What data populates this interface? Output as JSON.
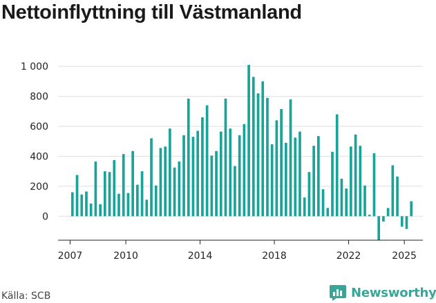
{
  "title": "Nettoinflyttning till Västmanland",
  "source": "Källa: SCB",
  "brand": {
    "name": "Newsworthy",
    "icon": "newsworthy-logo-icon",
    "color": "#3aa597"
  },
  "colors": {
    "bar": "#1aa398",
    "grid": "#dddddd",
    "axis": "#222222"
  },
  "chart_data": {
    "type": "bar",
    "title": "Nettoinflyttning till Västmanland",
    "xlabel": "",
    "ylabel": "",
    "x_range": [
      2006.35,
      2026.0
    ],
    "ylim": [
      -160,
      1010
    ],
    "y_ticks": [
      0,
      200,
      400,
      600,
      800,
      1000
    ],
    "y_tick_labels": [
      "0",
      "200",
      "400",
      "600",
      "800",
      "1 000"
    ],
    "x_ticks": [
      2007,
      2010,
      2014,
      2018,
      2022,
      2025
    ],
    "x_tick_labels": [
      "2007",
      "2010",
      "2014",
      "2018",
      "2022",
      "2025"
    ],
    "grid": true,
    "series": [
      {
        "x": [
          2007.125,
          2007.375,
          2007.625,
          2007.875,
          2008.125,
          2008.375,
          2008.625,
          2008.875,
          2009.125,
          2009.375,
          2009.625,
          2009.875,
          2010.125,
          2010.375,
          2010.625,
          2010.875,
          2011.125,
          2011.375,
          2011.625,
          2011.875,
          2012.125,
          2012.375,
          2012.625,
          2012.875,
          2013.125,
          2013.375,
          2013.625,
          2013.875,
          2014.125,
          2014.375,
          2014.625,
          2014.875,
          2015.125,
          2015.375,
          2015.625,
          2015.875,
          2016.125,
          2016.375,
          2016.625,
          2016.875,
          2017.125,
          2017.375,
          2017.625,
          2017.875,
          2018.125,
          2018.375,
          2018.625,
          2018.875,
          2019.125,
          2019.375,
          2019.625,
          2019.875,
          2020.125,
          2020.375,
          2020.625,
          2020.875,
          2021.125,
          2021.375,
          2021.625,
          2021.875,
          2022.125,
          2022.375,
          2022.625,
          2022.875,
          2023.125,
          2023.375,
          2023.625,
          2023.875,
          2024.125,
          2024.375,
          2024.625,
          2024.875,
          2025.125,
          2025.375
        ],
        "values": [
          160,
          275,
          145,
          165,
          85,
          365,
          80,
          300,
          295,
          375,
          150,
          415,
          155,
          435,
          210,
          300,
          110,
          520,
          205,
          455,
          465,
          585,
          325,
          365,
          540,
          785,
          530,
          570,
          660,
          740,
          405,
          435,
          565,
          785,
          585,
          335,
          540,
          615,
          1010,
          930,
          820,
          900,
          790,
          480,
          640,
          715,
          490,
          780,
          525,
          565,
          125,
          295,
          470,
          535,
          180,
          55,
          430,
          680,
          250,
          185,
          465,
          545,
          470,
          205,
          10,
          420,
          -160,
          -35,
          55,
          340,
          265,
          -70,
          -85,
          100
        ]
      }
    ]
  }
}
